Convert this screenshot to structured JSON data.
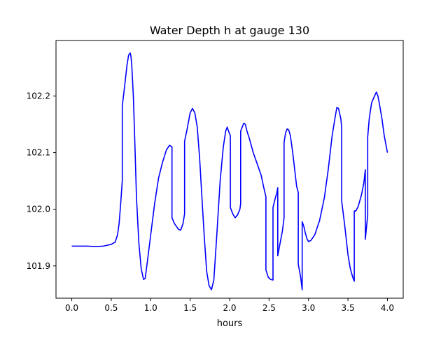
{
  "chart_data": {
    "type": "line",
    "title": "Water Depth h at gauge 130",
    "xlabel": "hours",
    "ylabel": "",
    "xlim": [
      -0.2,
      4.2
    ],
    "ylim": [
      101.843,
      102.298
    ],
    "xticks": [
      0.0,
      0.5,
      1.0,
      1.5,
      2.0,
      2.5,
      3.0,
      3.5,
      4.0
    ],
    "xtick_labels": [
      "0.0",
      "0.5",
      "1.0",
      "1.5",
      "2.0",
      "2.5",
      "3.0",
      "3.5",
      "4.0"
    ],
    "yticks": [
      101.9,
      102.0,
      102.1,
      102.2
    ],
    "ytick_labels": [
      "101.9",
      "102.0",
      "102.1",
      "102.2"
    ],
    "grid": false,
    "legend": "none",
    "series": [
      {
        "color": "#0000ff",
        "x": [
          0.0,
          0.2,
          0.3,
          0.4,
          0.5,
          0.55,
          0.58,
          0.6,
          0.62,
          0.64,
          0.64,
          0.66,
          0.68,
          0.7,
          0.72,
          0.74,
          0.75,
          0.76,
          0.78,
          0.8,
          0.82,
          0.85,
          0.88,
          0.91,
          0.93,
          0.96,
          1.0,
          1.05,
          1.1,
          1.15,
          1.2,
          1.24,
          1.27,
          1.27,
          1.3,
          1.35,
          1.38,
          1.41,
          1.43,
          1.43,
          1.46,
          1.5,
          1.53,
          1.56,
          1.59,
          1.62,
          1.65,
          1.68,
          1.71,
          1.74,
          1.77,
          1.8,
          1.84,
          1.88,
          1.92,
          1.95,
          1.97,
          2.0,
          2.01,
          2.01,
          2.04,
          2.07,
          2.1,
          2.13,
          2.14,
          2.14,
          2.16,
          2.18,
          2.2,
          2.22,
          2.25,
          2.3,
          2.35,
          2.4,
          2.43,
          2.46,
          2.46,
          2.49,
          2.52,
          2.55,
          2.55,
          2.57,
          2.6,
          2.61,
          2.61,
          2.64,
          2.67,
          2.69,
          2.69,
          2.71,
          2.73,
          2.75,
          2.77,
          2.8,
          2.85,
          2.87,
          2.87,
          2.9,
          2.92,
          2.92,
          2.94,
          2.96,
          2.98,
          3.0,
          3.03,
          3.08,
          3.14,
          3.2,
          3.25,
          3.3,
          3.34,
          3.36,
          3.38,
          3.41,
          3.42,
          3.42,
          3.46,
          3.5,
          3.53,
          3.56,
          3.58,
          3.58,
          3.6,
          3.63,
          3.67,
          3.7,
          3.72,
          3.72,
          3.75,
          3.75,
          3.77,
          3.8,
          3.83,
          3.86,
          3.88,
          3.9,
          3.93,
          3.96,
          4.0
        ],
        "values": [
          101.935,
          101.935,
          101.934,
          101.935,
          101.938,
          101.942,
          101.955,
          101.975,
          102.01,
          102.05,
          102.183,
          102.205,
          102.23,
          102.255,
          102.272,
          102.276,
          102.27,
          102.255,
          102.2,
          102.115,
          102.02,
          101.94,
          101.895,
          101.876,
          101.878,
          101.91,
          101.955,
          102.01,
          102.055,
          102.083,
          102.105,
          102.113,
          102.11,
          101.985,
          101.975,
          101.965,
          101.963,
          101.975,
          101.992,
          102.12,
          102.14,
          102.17,
          102.178,
          102.17,
          102.145,
          102.09,
          102.02,
          101.95,
          101.89,
          101.865,
          101.858,
          101.875,
          101.96,
          102.05,
          102.11,
          102.138,
          102.145,
          102.133,
          102.13,
          102.003,
          101.992,
          101.985,
          101.99,
          102.0,
          102.01,
          102.138,
          102.145,
          102.152,
          102.15,
          102.138,
          102.125,
          102.1,
          102.08,
          102.06,
          102.04,
          102.022,
          101.893,
          101.88,
          101.876,
          101.875,
          102.003,
          102.015,
          102.03,
          102.038,
          101.918,
          101.94,
          101.962,
          101.985,
          102.118,
          102.135,
          102.142,
          102.14,
          102.13,
          102.1,
          102.04,
          102.03,
          101.903,
          101.88,
          101.858,
          101.978,
          101.97,
          101.958,
          101.948,
          101.943,
          101.945,
          101.955,
          101.98,
          102.02,
          102.07,
          102.13,
          102.165,
          102.18,
          102.178,
          102.16,
          102.145,
          102.015,
          101.97,
          101.92,
          101.895,
          101.88,
          101.873,
          101.997,
          101.997,
          102.005,
          102.025,
          102.045,
          102.07,
          101.947,
          101.99,
          102.128,
          102.16,
          102.188,
          102.198,
          102.207,
          102.2,
          102.185,
          102.16,
          102.13,
          102.1
        ]
      }
    ]
  }
}
